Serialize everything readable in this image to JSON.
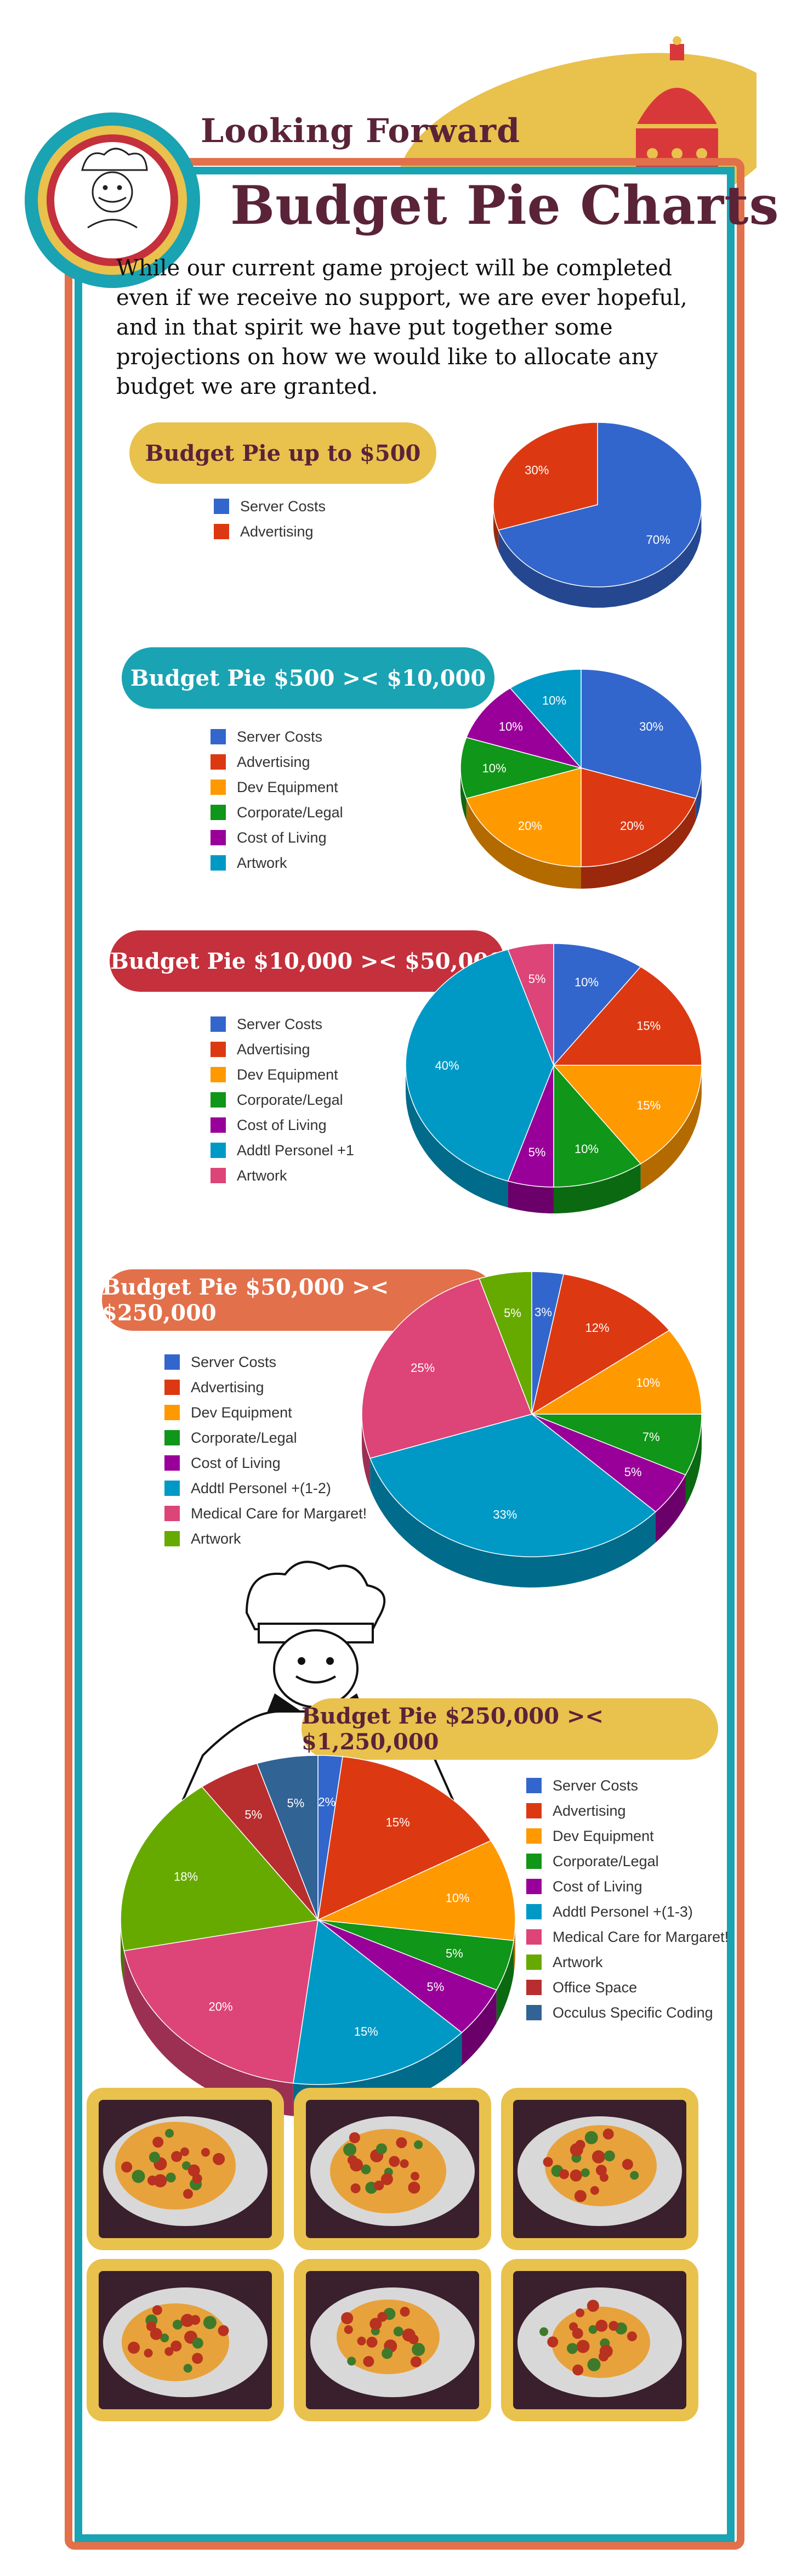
{
  "header": {
    "subtitle": "Looking Forward",
    "title": "Budget Pie Charts"
  },
  "intro": "While our current game project will be completed even if we receive no support, we are ever hopeful, and in that spirit we have put together some projections on how we would like to allocate any budget we are granted.",
  "colors": {
    "frame_outer": "#e2704a",
    "frame_inner": "#1aa3b2",
    "title": "#5a2338",
    "gold": "#e9c14d"
  },
  "chart_data": [
    {
      "type": "pie",
      "title": "Budget Pie up to $500",
      "pill_color": "#e9c14d",
      "pill_text_color": "#5a2338",
      "slices": [
        {
          "label": "Server Costs",
          "value": 70,
          "color": "#3366cc"
        },
        {
          "label": "Advertising",
          "value": 30,
          "color": "#dc3912"
        }
      ]
    },
    {
      "type": "pie",
      "title": "Budget Pie $500 ><  $10,000",
      "pill_color": "#1aa3b2",
      "pill_text_color": "#ffffff",
      "slices": [
        {
          "label": "Server Costs",
          "value": 30,
          "color": "#3366cc"
        },
        {
          "label": "Advertising",
          "value": 20,
          "color": "#dc3912"
        },
        {
          "label": "Dev Equipment",
          "value": 20,
          "color": "#ff9900"
        },
        {
          "label": "Corporate/Legal",
          "value": 10,
          "color": "#109618"
        },
        {
          "label": "Cost of Living",
          "value": 10,
          "color": "#990099"
        },
        {
          "label": "Artwork",
          "value": 10,
          "color": "#0099c6"
        }
      ]
    },
    {
      "type": "pie",
      "title": "Budget Pie $10,000 ><  $50,000",
      "pill_color": "#c4303c",
      "pill_text_color": "#ffffff",
      "slices": [
        {
          "label": "Server Costs",
          "value": 10,
          "color": "#3366cc"
        },
        {
          "label": "Advertising",
          "value": 15,
          "color": "#dc3912"
        },
        {
          "label": "Dev Equipment",
          "value": 15,
          "color": "#ff9900"
        },
        {
          "label": "Corporate/Legal",
          "value": 10,
          "color": "#109618"
        },
        {
          "label": "Cost of Living",
          "value": 5,
          "color": "#990099"
        },
        {
          "label": "Addtl Personel +1",
          "value": 40,
          "color": "#0099c6"
        },
        {
          "label": "Artwork",
          "value": 5,
          "color": "#dd4477"
        }
      ]
    },
    {
      "type": "pie",
      "title": "Budget Pie $50,000 >< $250,000",
      "pill_color": "#e2704a",
      "pill_text_color": "#ffffff",
      "slices": [
        {
          "label": "Server Costs",
          "value": 3,
          "color": "#3366cc"
        },
        {
          "label": "Advertising",
          "value": 12,
          "color": "#dc3912"
        },
        {
          "label": "Dev Equipment",
          "value": 10,
          "color": "#ff9900"
        },
        {
          "label": "Corporate/Legal",
          "value": 7,
          "color": "#109618"
        },
        {
          "label": "Cost of Living",
          "value": 5,
          "color": "#990099"
        },
        {
          "label": "Addtl Personel +(1-2)",
          "value": 33,
          "color": "#0099c6"
        },
        {
          "label": "Medical Care for Margaret!",
          "value": 25,
          "color": "#dd4477"
        },
        {
          "label": "Artwork",
          "value": 5,
          "color": "#66aa00"
        }
      ]
    },
    {
      "type": "pie",
      "title": "Budget Pie $250,000 >< $1,250,000",
      "pill_color": "#e9c14d",
      "pill_text_color": "#5a2338",
      "slices": [
        {
          "label": "Server Costs",
          "value": 2,
          "color": "#3366cc"
        },
        {
          "label": "Advertising",
          "value": 15,
          "color": "#dc3912"
        },
        {
          "label": "Dev Equipment",
          "value": 10,
          "color": "#ff9900"
        },
        {
          "label": "Corporate/Legal",
          "value": 5,
          "color": "#109618"
        },
        {
          "label": "Cost of Living",
          "value": 5,
          "color": "#990099"
        },
        {
          "label": "Addtl Personel +(1-3)",
          "value": 15,
          "color": "#0099c6"
        },
        {
          "label": "Medical Care for Margaret!",
          "value": 20,
          "color": "#dd4477"
        },
        {
          "label": "Artwork",
          "value": 18,
          "color": "#66aa00"
        },
        {
          "label": "Office Space",
          "value": 5,
          "color": "#b82e2e"
        },
        {
          "label": "Occulus Specific Coding",
          "value": 5,
          "color": "#316395"
        }
      ]
    }
  ]
}
